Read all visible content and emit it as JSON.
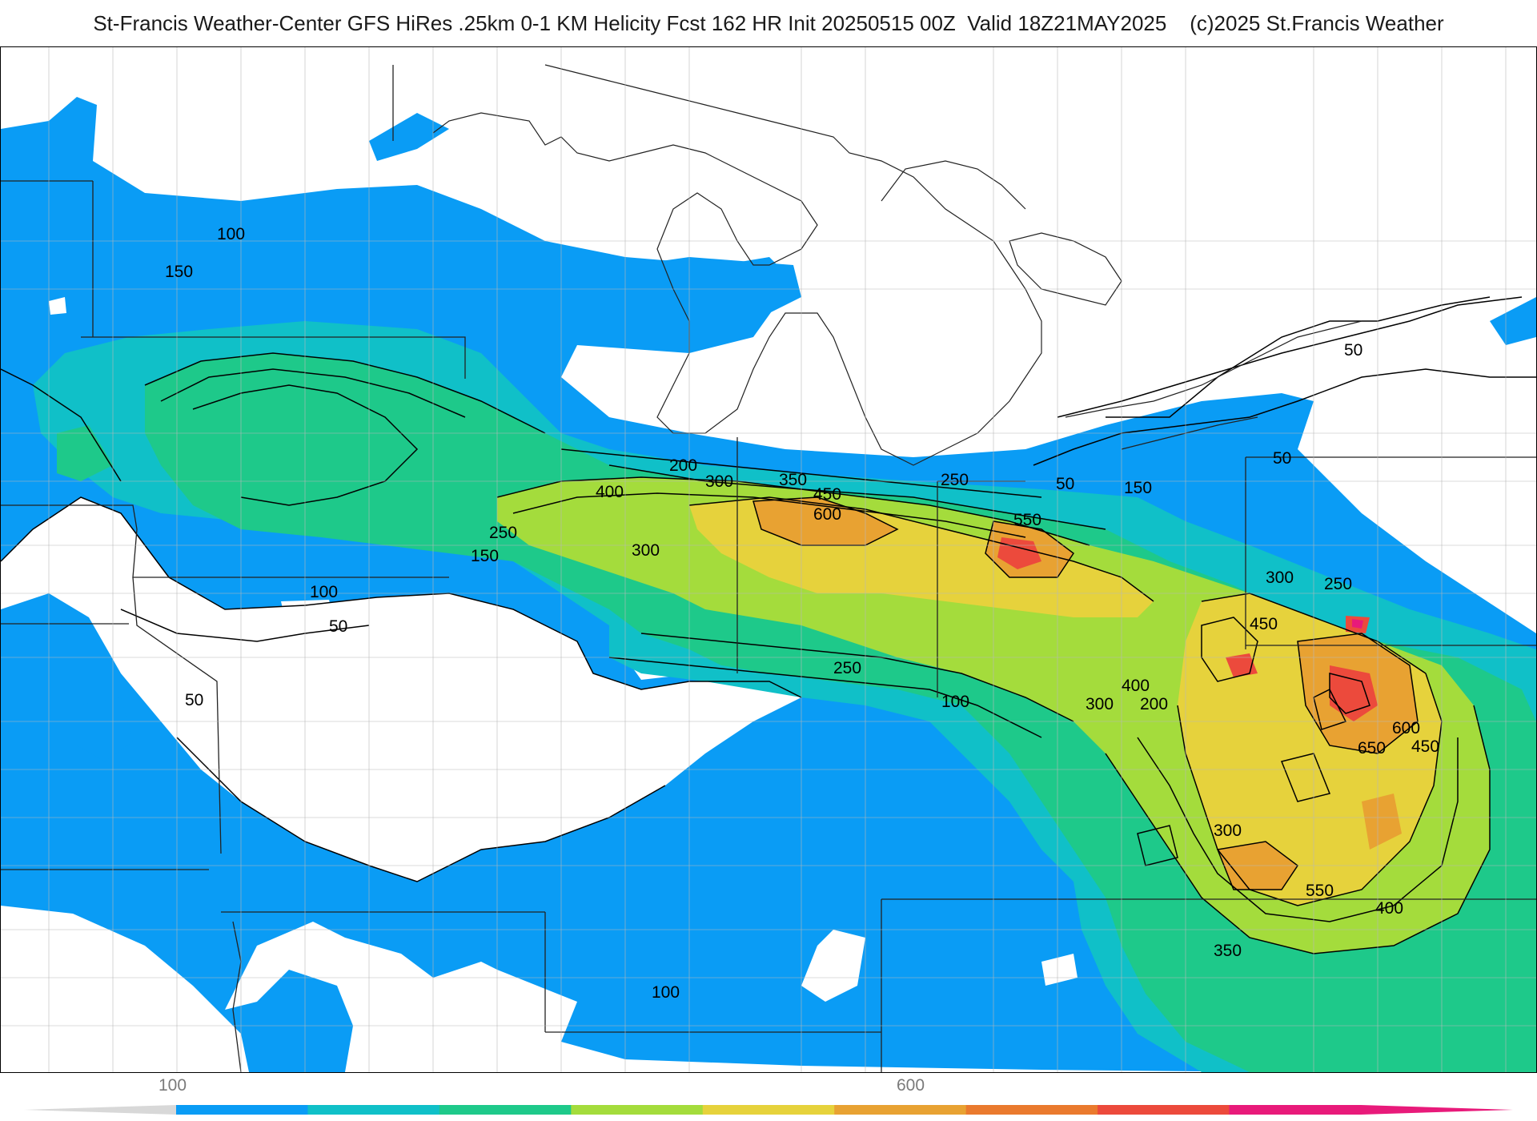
{
  "title": "St-Francis Weather-Center GFS HiRes .25km 0-1 KM Helicity Fcst 162 HR Init 20250515 00Z  Valid 18Z21MAY2025    (c)2025 St.Francis Weather",
  "map": {
    "contour_labels": [
      "100",
      "150",
      "200",
      "300",
      "350",
      "450",
      "600",
      "400",
      "250",
      "300",
      "150",
      "100",
      "50",
      "50",
      "250",
      "550",
      "50",
      "150",
      "300",
      "250",
      "50",
      "50",
      "450",
      "600",
      "650",
      "450",
      "400",
      "200",
      "300",
      "100",
      "250",
      "300",
      "550",
      "400",
      "350",
      "100"
    ]
  },
  "colorbar": {
    "tick_labels": [
      "100",
      "600"
    ],
    "colors": [
      "#0a9cf5",
      "#10c0c8",
      "#1ec98a",
      "#a4dc3c",
      "#e6d23c",
      "#e8a232",
      "#ea7a2e",
      "#ec4a3c",
      "#e81a7a"
    ]
  }
}
